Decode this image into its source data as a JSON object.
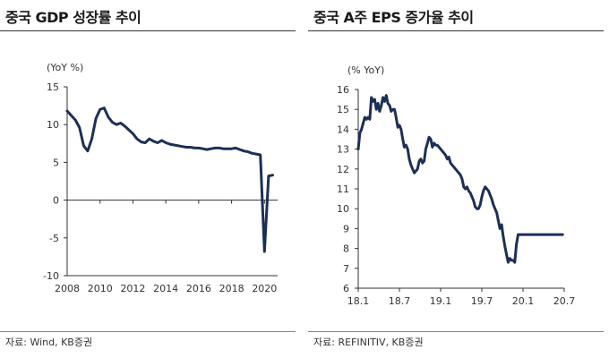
{
  "charts": [
    {
      "title": "중국 GDP 성장률 추이",
      "source": "자료: Wind, KB증권"
    },
    {
      "title": "중국 A주 EPS 증가율 추이",
      "source": "자료: REFINITIV, KB증권"
    }
  ],
  "chart_data": [
    {
      "type": "line",
      "title": "중국 GDP 성장률 추이",
      "ylabel": "(YoY %)",
      "xlabel": "",
      "xlim": [
        2008.0,
        2020.8
      ],
      "ylim": [
        -10,
        15
      ],
      "yticks": [
        -10,
        -5,
        0,
        5,
        10,
        15
      ],
      "xticks": [
        "2008",
        "2010",
        "2012",
        "2014",
        "2016",
        "2018",
        "2020"
      ],
      "xtick_values": [
        2008,
        2010,
        2012,
        2014,
        2016,
        2018,
        2020
      ],
      "grid": false,
      "legend": "none",
      "color": "#1c2f57",
      "series": [
        {
          "x": [
            2008.0,
            2008.25,
            2008.5,
            2008.75,
            2009.0,
            2009.25,
            2009.5,
            2009.75,
            2010.0,
            2010.25,
            2010.5,
            2010.75,
            2011.0,
            2011.25,
            2011.5,
            2011.75,
            2012.0,
            2012.25,
            2012.5,
            2012.75,
            2013.0,
            2013.25,
            2013.5,
            2013.75,
            2014.0,
            2014.25,
            2014.5,
            2014.75,
            2015.0,
            2015.25,
            2015.5,
            2015.75,
            2016.0,
            2016.25,
            2016.5,
            2016.75,
            2017.0,
            2017.25,
            2017.5,
            2017.75,
            2018.0,
            2018.25,
            2018.5,
            2018.75,
            2019.0,
            2019.25,
            2019.5,
            2019.75,
            2020.0,
            2020.25,
            2020.5
          ],
          "values": [
            11.8,
            11.2,
            10.6,
            9.6,
            7.2,
            6.5,
            8.1,
            10.8,
            12.0,
            12.2,
            11.0,
            10.3,
            10.0,
            10.2,
            9.8,
            9.3,
            8.8,
            8.1,
            7.7,
            7.6,
            8.1,
            7.8,
            7.6,
            7.9,
            7.6,
            7.4,
            7.3,
            7.2,
            7.1,
            7.0,
            7.0,
            6.9,
            6.9,
            6.8,
            6.7,
            6.8,
            6.9,
            6.9,
            6.8,
            6.8,
            6.8,
            6.9,
            6.7,
            6.5,
            6.4,
            6.2,
            6.1,
            6.0,
            -6.8,
            3.2,
            3.3
          ]
        }
      ]
    },
    {
      "type": "line",
      "title": "중국 A주 EPS 증가율 추이",
      "ylabel": "(% YoY)",
      "xlabel": "",
      "xlim": [
        2018.0,
        2020.5
      ],
      "ylim": [
        6,
        16
      ],
      "yticks": [
        6,
        7,
        8,
        9,
        10,
        11,
        12,
        13,
        14,
        15,
        16
      ],
      "xticks": [
        "18.1",
        "18.7",
        "19.1",
        "19.7",
        "20.1",
        "20.7"
      ],
      "xtick_values": [
        2018.0,
        2018.5,
        2019.0,
        2019.5,
        2020.0,
        2020.5
      ],
      "grid": false,
      "legend": "none",
      "color": "#1c2f57",
      "series": [
        {
          "x": [
            2018.0,
            2018.02,
            2018.04,
            2018.06,
            2018.08,
            2018.1,
            2018.12,
            2018.14,
            2018.16,
            2018.18,
            2018.2,
            2018.22,
            2018.24,
            2018.26,
            2018.28,
            2018.3,
            2018.32,
            2018.34,
            2018.36,
            2018.38,
            2018.4,
            2018.42,
            2018.44,
            2018.46,
            2018.48,
            2018.5,
            2018.52,
            2018.54,
            2018.56,
            2018.58,
            2018.6,
            2018.62,
            2018.64,
            2018.66,
            2018.68,
            2018.7,
            2018.72,
            2018.74,
            2018.76,
            2018.78,
            2018.8,
            2018.82,
            2018.84,
            2018.86,
            2018.88,
            2018.9,
            2018.92,
            2018.94,
            2018.96,
            2018.98,
            2019.0,
            2019.02,
            2019.04,
            2019.06,
            2019.08,
            2019.1,
            2019.12,
            2019.14,
            2019.16,
            2019.18,
            2019.2,
            2019.22,
            2019.24,
            2019.26,
            2019.28,
            2019.3,
            2019.32,
            2019.34,
            2019.36,
            2019.38,
            2019.4,
            2019.42,
            2019.44,
            2019.46,
            2019.48,
            2019.5,
            2019.52,
            2019.54,
            2019.56,
            2019.58,
            2019.6,
            2019.62,
            2019.64,
            2019.66,
            2019.68,
            2019.7,
            2019.72,
            2019.74,
            2019.76,
            2019.78,
            2019.8,
            2019.82,
            2019.84,
            2019.86,
            2019.88,
            2019.9,
            2019.92,
            2019.94,
            2019.96,
            2019.98,
            2020.0,
            2020.02,
            2020.04,
            2020.06,
            2020.08,
            2020.1,
            2020.12,
            2020.14,
            2020.16,
            2020.18,
            2020.2,
            2020.22,
            2020.24,
            2020.26,
            2020.28,
            2020.3,
            2020.32,
            2020.34,
            2020.36,
            2020.38,
            2020.4,
            2020.42,
            2020.44,
            2020.46,
            2020.48
          ],
          "values": [
            13.0,
            13.8,
            14.0,
            14.3,
            14.6,
            14.5,
            14.6,
            14.5,
            15.6,
            15.4,
            15.5,
            15.0,
            15.3,
            14.9,
            15.2,
            15.6,
            15.4,
            15.7,
            15.3,
            15.2,
            14.9,
            15.0,
            15.0,
            14.6,
            14.1,
            14.2,
            14.0,
            13.5,
            13.1,
            13.2,
            13.0,
            12.5,
            12.2,
            12.0,
            11.8,
            11.9,
            12.0,
            12.4,
            12.5,
            12.3,
            12.4,
            13.0,
            13.3,
            13.6,
            13.5,
            13.1,
            13.3,
            13.2,
            13.2,
            13.1,
            13.0,
            12.9,
            12.8,
            12.7,
            12.5,
            12.6,
            12.3,
            12.2,
            12.1,
            12.0,
            11.9,
            11.8,
            11.7,
            11.5,
            11.1,
            11.0,
            11.1,
            10.9,
            10.8,
            10.6,
            10.4,
            10.1,
            10.0,
            10.0,
            10.2,
            10.6,
            10.9,
            11.1,
            11.0,
            10.9,
            10.7,
            10.5,
            10.2,
            10.0,
            9.8,
            9.4,
            9.0,
            9.2,
            8.6,
            8.1,
            7.7,
            7.3,
            7.5,
            7.4,
            7.4,
            7.3,
            8.2,
            8.7,
            8.7,
            8.7,
            8.7,
            8.7,
            8.7,
            8.7,
            8.7,
            8.7,
            8.7,
            8.7,
            8.7,
            8.7,
            8.7,
            8.7,
            8.7,
            8.7,
            8.7,
            8.7,
            8.7,
            8.7,
            8.7,
            8.7,
            8.7,
            8.7,
            8.7,
            8.7,
            8.7
          ]
        }
      ]
    }
  ]
}
